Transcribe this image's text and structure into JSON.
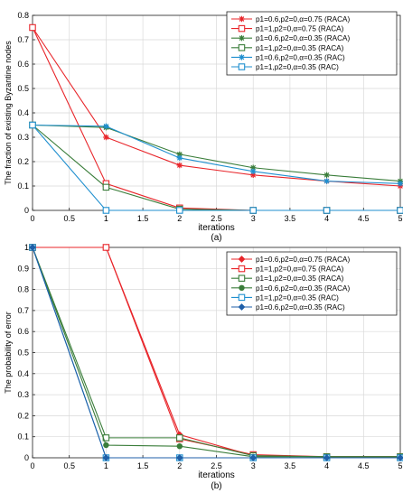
{
  "chart_data": [
    {
      "type": "line",
      "caption": "(a)",
      "xlabel": "iterations",
      "ylabel": "The fraction of existing Byzantine nodes",
      "xlim": [
        0,
        5
      ],
      "ylim": [
        0,
        0.8
      ],
      "xticks": [
        "0",
        "0.5",
        "1",
        "1.5",
        "2",
        "2.5",
        "3",
        "3.5",
        "4",
        "4.5",
        "5"
      ],
      "yticks": [
        "0",
        "0.1",
        "0.2",
        "0.3",
        "0.4",
        "0.5",
        "0.6",
        "0.7",
        "0.8"
      ],
      "grid": true,
      "legend_position": "top-right",
      "x": [
        0,
        1,
        2,
        3,
        4,
        5
      ],
      "series": [
        {
          "name": "p1=0.6,p2=0,α=0.75 (RACA)",
          "color": "#e8252a",
          "marker": "star",
          "values": [
            0.75,
            0.3,
            0.185,
            0.145,
            0.12,
            0.1
          ]
        },
        {
          "name": "p1=1,p2=0,α=0.75 (RACA)",
          "color": "#e8252a",
          "marker": "square",
          "values": [
            0.75,
            0.11,
            0.01,
            0.0,
            0.0,
            0.0
          ]
        },
        {
          "name": "p1=0.6,p2=0,α=0.35 (RACA)",
          "color": "#3a7d3a",
          "marker": "star",
          "values": [
            0.35,
            0.34,
            0.23,
            0.175,
            0.145,
            0.12
          ]
        },
        {
          "name": "p1=1,p2=0,α=0.35 (RACA)",
          "color": "#3a7d3a",
          "marker": "square",
          "values": [
            0.35,
            0.095,
            0.005,
            0.0,
            0.0,
            0.0
          ]
        },
        {
          "name": "p1=0.6,p2=0,α=0.35 (RAC)",
          "color": "#1f8fcf",
          "marker": "star",
          "values": [
            0.35,
            0.345,
            0.215,
            0.16,
            0.12,
            0.11
          ]
        },
        {
          "name": "p1=1,p2=0,α=0.35 (RAC)",
          "color": "#1f8fcf",
          "marker": "square",
          "values": [
            0.35,
            0.0,
            0.0,
            0.0,
            0.0,
            0.0
          ]
        }
      ]
    },
    {
      "type": "line",
      "caption": "(b)",
      "xlabel": "iterations",
      "ylabel": "The probability of error",
      "xlim": [
        0,
        5
      ],
      "ylim": [
        0,
        1
      ],
      "xticks": [
        "0",
        "0.5",
        "1",
        "1.5",
        "2",
        "2.5",
        "3",
        "3.5",
        "4",
        "4.5",
        "5"
      ],
      "yticks": [
        "0",
        "0.1",
        "0.2",
        "0.3",
        "0.4",
        "0.5",
        "0.6",
        "0.7",
        "0.8",
        "0.9",
        "1"
      ],
      "grid": true,
      "legend_position": "top-right",
      "x": [
        0,
        1,
        2,
        3,
        4,
        5
      ],
      "series": [
        {
          "name": "p1=0.6,p2=0,α=0.75 (RACA)",
          "color": "#e8252a",
          "marker": "diamond",
          "values": [
            1.0,
            1.0,
            0.11,
            0.01,
            0.005,
            0.005
          ]
        },
        {
          "name": "p1=1,p2=0,α=0.75 (RACA)",
          "color": "#e8252a",
          "marker": "square",
          "values": [
            1.0,
            1.0,
            0.09,
            0.015,
            0.005,
            0.005
          ]
        },
        {
          "name": "p1=1,p2=0,α=0.35 (RACA)",
          "color": "#3a7d3a",
          "marker": "square",
          "values": [
            1.0,
            0.095,
            0.095,
            0.01,
            0.005,
            0.005
          ]
        },
        {
          "name": "p1=0.6,p2=0,α=0.35 (RACA)",
          "color": "#3a7d3a",
          "marker": "dot",
          "values": [
            1.0,
            0.06,
            0.055,
            0.005,
            0.005,
            0.005
          ]
        },
        {
          "name": "p1=1,p2=0,α=0.35 (RAC)",
          "color": "#1f8fcf",
          "marker": "square",
          "values": [
            1.0,
            0.0,
            0.0,
            0.0,
            0.0,
            0.0
          ]
        },
        {
          "name": "p1=0.6,p2=0,α=0.35 (RAC)",
          "color": "#1f5fa8",
          "marker": "diamond",
          "values": [
            1.0,
            0.0,
            0.0,
            0.0,
            0.0,
            0.0
          ]
        }
      ]
    }
  ]
}
